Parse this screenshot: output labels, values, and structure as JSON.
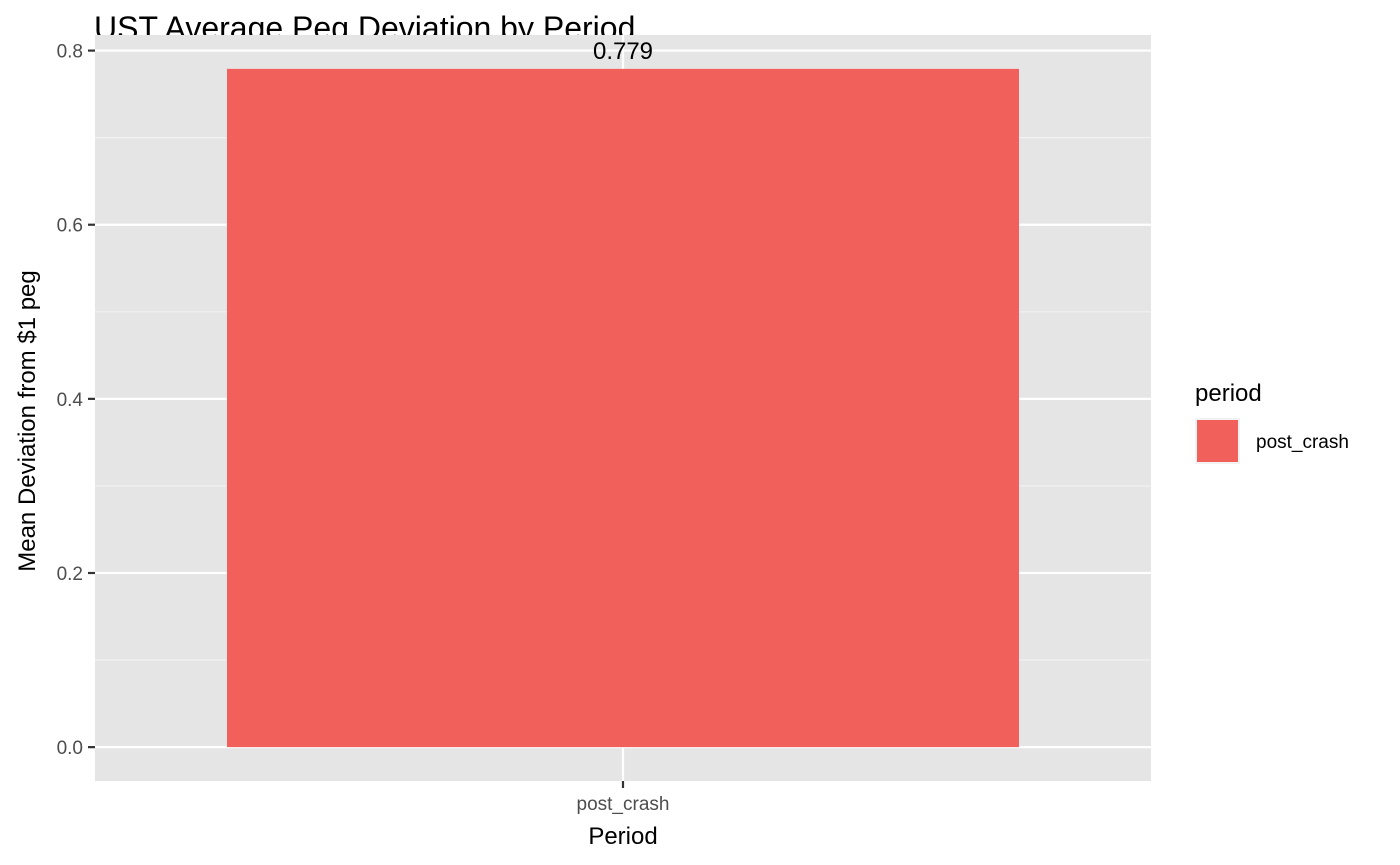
{
  "chart_data": {
    "type": "bar",
    "title": "UST Average Peg Deviation by Period",
    "xlabel": "Period",
    "ylabel": "Mean Deviation from $1 peg",
    "categories": [
      "post_crash"
    ],
    "values": [
      0.779
    ],
    "data_labels": [
      "0.779"
    ],
    "ylim": [
      -0.0389,
      0.8179
    ],
    "y_ticks": [
      0.0,
      0.2,
      0.4,
      0.6,
      0.8
    ],
    "y_tick_labels": [
      "0.0",
      "0.2",
      "0.4",
      "0.6",
      "0.8"
    ],
    "grid": true,
    "legend": {
      "title": "period",
      "placement": "right",
      "entries": [
        {
          "label": "post_crash",
          "color": "#F2605C"
        }
      ]
    },
    "colors": {
      "bar": "#F2605C",
      "panel_background": "#E5E5E5",
      "grid_major": "#FFFFFF",
      "grid_minor": "#F2F2F2",
      "tick_text": "#4D4D4D"
    }
  }
}
